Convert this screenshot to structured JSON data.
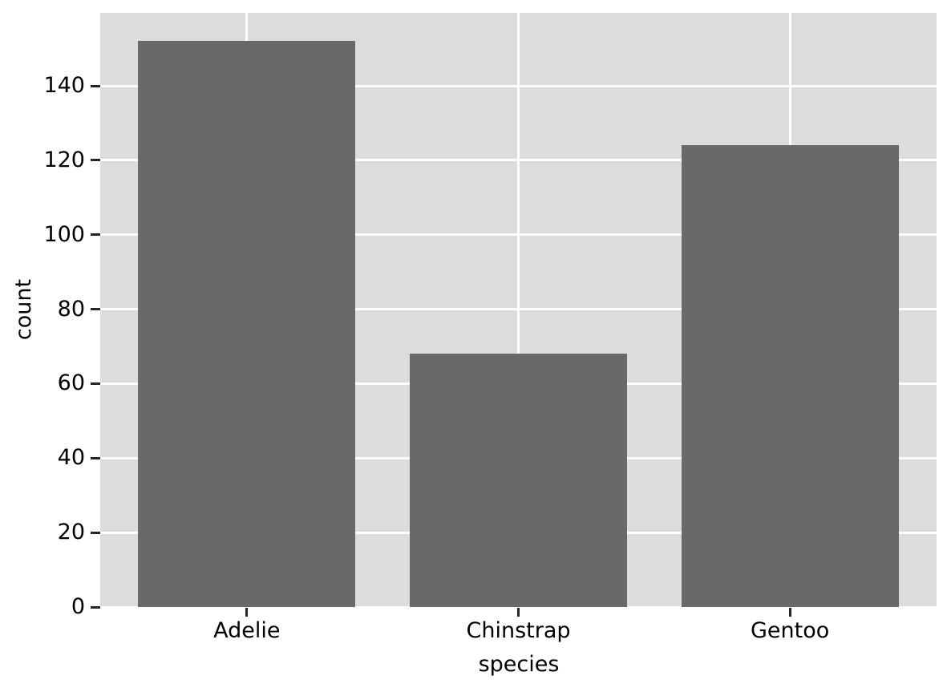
{
  "chart_data": {
    "type": "bar",
    "categories": [
      "Adelie",
      "Chinstrap",
      "Gentoo"
    ],
    "values": [
      152,
      68,
      124
    ],
    "title": "",
    "xlabel": "species",
    "ylabel": "count",
    "yticks": [
      0,
      20,
      40,
      60,
      80,
      100,
      120,
      140
    ],
    "ylim": [
      0,
      159.6
    ],
    "xlim": [
      -0.54,
      2.54
    ],
    "bar_width": 0.8,
    "grid": true,
    "legend": false,
    "style": {
      "bar_color": "#696969",
      "axes_background": "#dcdcdc",
      "gridline_color": "#ffffff",
      "tick_mark_color": "#262626",
      "text_color": "#000000",
      "figure_background": "#ffffff"
    }
  }
}
